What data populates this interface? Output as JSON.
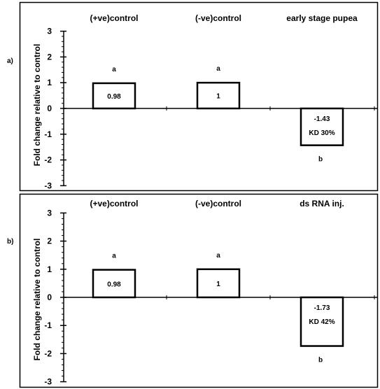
{
  "chart_data": [
    {
      "type": "bar",
      "panel_label": "a)",
      "categories": [
        "(+ve)control",
        "(-ve)control",
        "early stage pupea"
      ],
      "values": [
        0.98,
        1,
        -1.43
      ],
      "bar_labels": [
        "0.98",
        "1",
        "-1.43"
      ],
      "extra_labels": [
        "",
        "",
        "KD 30%"
      ],
      "significance": [
        "a",
        "a",
        "b"
      ],
      "ylabel": "Fold change relative to control",
      "ylim": [
        -3,
        3
      ],
      "yticks": [
        "3",
        "2",
        "1",
        "0",
        "-1",
        "-2",
        "-3"
      ],
      "grid": false,
      "error_bars": [
        0,
        0,
        0.03
      ]
    },
    {
      "type": "bar",
      "panel_label": "b)",
      "categories": [
        "(+ve)control",
        "(-ve)control",
        "ds RNA inj."
      ],
      "values": [
        0.98,
        1,
        -1.73
      ],
      "bar_labels": [
        "0.98",
        "1",
        "-1.73"
      ],
      "extra_labels": [
        "",
        "",
        "KD 42%"
      ],
      "significance": [
        "a",
        "a",
        "b"
      ],
      "ylabel": "Fold change relative to control",
      "ylim": [
        -3,
        3
      ],
      "yticks": [
        "3",
        "2",
        "1",
        "0",
        "-1",
        "-2",
        "-3"
      ],
      "grid": false,
      "error_bars": [
        0,
        0,
        0.03
      ]
    }
  ]
}
